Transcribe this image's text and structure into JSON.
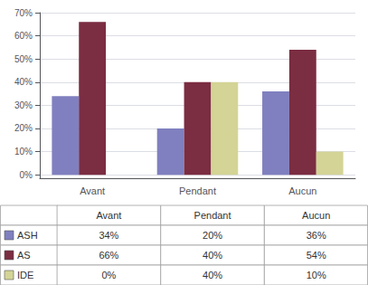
{
  "chart_data": {
    "type": "bar",
    "categories": [
      "Avant",
      "Pendant",
      "Aucun"
    ],
    "series": [
      {
        "name": "ASH",
        "color": "#8080C0",
        "values": [
          34,
          20,
          36
        ],
        "value_labels": [
          "34%",
          "20%",
          "36%"
        ]
      },
      {
        "name": "AS",
        "color": "#7B2D42",
        "values": [
          66,
          40,
          54
        ],
        "value_labels": [
          "66%",
          "40%",
          "54%"
        ]
      },
      {
        "name": "IDE",
        "color": "#D4D496",
        "values": [
          0,
          40,
          10
        ],
        "value_labels": [
          "0%",
          "40%",
          "10%"
        ]
      }
    ],
    "ylim": [
      -1.5,
      70
    ],
    "yticks": [
      {
        "value": 0,
        "label": "0%"
      },
      {
        "value": 10,
        "label": "10%"
      },
      {
        "value": 20,
        "label": "20%"
      },
      {
        "value": 30,
        "label": "30%"
      },
      {
        "value": 40,
        "label": "40%"
      },
      {
        "value": 50,
        "label": "50%"
      },
      {
        "value": 60,
        "label": "60%"
      },
      {
        "value": 70,
        "label": "70%"
      }
    ],
    "grid": true
  }
}
